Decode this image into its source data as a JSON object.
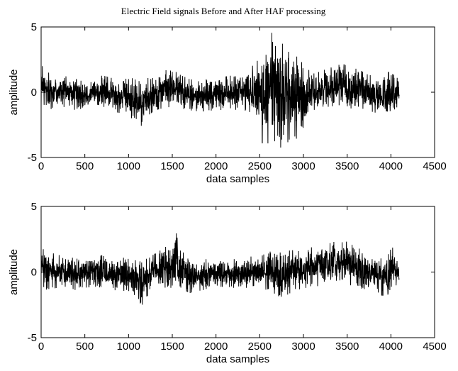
{
  "chart_data": [
    {
      "type": "line",
      "title": "Electric Field signals Before and After HAF processing",
      "xlabel": "data samples",
      "ylabel": "amplitude",
      "xlim": [
        0,
        4500
      ],
      "ylim": [
        -5,
        5
      ],
      "xticks": [
        "0",
        "500",
        "1000",
        "1500",
        "2000",
        "2500",
        "3000",
        "3500",
        "4000",
        "4500"
      ],
      "yticks": [
        "-5",
        "0",
        "5"
      ],
      "grid": false,
      "series": [
        {
          "color": "#000000",
          "x": [
            0,
            100,
            200,
            300,
            400,
            500,
            600,
            700,
            800,
            900,
            1000,
            1100,
            1150,
            1200,
            1300,
            1400,
            1500,
            1550,
            1600,
            1700,
            1800,
            1900,
            2000,
            2100,
            2200,
            2300,
            2400,
            2500,
            2550,
            2600,
            2650,
            2700,
            2750,
            2800,
            2900,
            3000,
            3050,
            3100,
            3200,
            3300,
            3400,
            3450,
            3500,
            3600,
            3700,
            3800,
            3900,
            3950,
            4000,
            4050,
            4096
          ],
          "envelope_min": [
            -1.5,
            -1.3,
            -1.2,
            -1.1,
            -1.4,
            -1.2,
            -1.1,
            -1.2,
            -1.4,
            -1.6,
            -2.0,
            -2.3,
            -2.6,
            -1.9,
            -1.4,
            -1.2,
            -1.2,
            -1.0,
            -1.3,
            -1.6,
            -1.4,
            -1.5,
            -1.3,
            -1.4,
            -1.4,
            -1.6,
            -1.5,
            -2.6,
            -4.8,
            -3.8,
            -4.2,
            -4.0,
            -4.3,
            -3.9,
            -3.6,
            -3.4,
            -2.0,
            -1.4,
            -1.2,
            -1.1,
            -1.0,
            -1.0,
            -1.2,
            -1.3,
            -1.5,
            -1.5,
            -1.8,
            -2.5,
            -1.9,
            -1.4,
            -0.8
          ],
          "envelope_max": [
            2.1,
            1.4,
            1.3,
            1.2,
            1.0,
            1.2,
            1.0,
            1.3,
            1.1,
            1.0,
            1.2,
            0.9,
            0.8,
            1.0,
            1.4,
            1.6,
            1.9,
            1.5,
            1.3,
            1.0,
            0.9,
            1.0,
            1.1,
            1.2,
            1.3,
            1.6,
            1.9,
            2.6,
            3.2,
            4.0,
            5.0,
            4.3,
            3.8,
            3.4,
            2.8,
            2.5,
            1.8,
            1.4,
            1.6,
            1.9,
            2.3,
            2.2,
            2.0,
            1.8,
            1.5,
            1.2,
            1.0,
            1.3,
            1.9,
            1.8,
            0.5
          ]
        }
      ]
    },
    {
      "type": "line",
      "xlabel": "data samples",
      "ylabel": "amplitude",
      "xlim": [
        0,
        4500
      ],
      "ylim": [
        -5,
        5
      ],
      "xticks": [
        "0",
        "500",
        "1000",
        "1500",
        "2000",
        "2500",
        "3000",
        "3500",
        "4000",
        "4500"
      ],
      "yticks": [
        "-5",
        "0",
        "5"
      ],
      "grid": false,
      "series": [
        {
          "color": "#000000",
          "x": [
            0,
            100,
            200,
            300,
            400,
            500,
            600,
            700,
            800,
            900,
            1000,
            1100,
            1150,
            1200,
            1300,
            1400,
            1500,
            1550,
            1600,
            1700,
            1800,
            1900,
            2000,
            2100,
            2200,
            2300,
            2400,
            2500,
            2600,
            2700,
            2730,
            2800,
            2900,
            3000,
            3100,
            3200,
            3300,
            3400,
            3450,
            3500,
            3600,
            3700,
            3800,
            3900,
            3950,
            4000,
            4050,
            4096
          ],
          "envelope_min": [
            -1.4,
            -1.3,
            -1.2,
            -1.1,
            -1.4,
            -1.2,
            -1.1,
            -1.2,
            -1.3,
            -1.5,
            -2.0,
            -2.3,
            -2.6,
            -1.9,
            -1.4,
            -1.2,
            -1.2,
            -1.1,
            -1.3,
            -1.6,
            -1.4,
            -1.5,
            -1.2,
            -1.1,
            -1.2,
            -1.3,
            -1.1,
            -1.0,
            -1.6,
            -2.0,
            -2.8,
            -1.8,
            -1.4,
            -1.3,
            -1.2,
            -1.0,
            -0.9,
            -0.6,
            -0.7,
            -0.9,
            -1.2,
            -1.3,
            -1.5,
            -1.8,
            -2.5,
            -1.9,
            -1.4,
            -0.8
          ],
          "envelope_max": [
            2.0,
            1.5,
            1.3,
            1.2,
            1.0,
            1.2,
            1.0,
            1.3,
            1.1,
            1.0,
            1.2,
            0.9,
            0.8,
            1.0,
            1.4,
            1.8,
            2.3,
            3.0,
            1.7,
            1.2,
            0.9,
            1.0,
            1.0,
            1.0,
            1.0,
            1.1,
            1.4,
            1.2,
            1.5,
            2.0,
            1.8,
            1.6,
            1.7,
            1.7,
            1.9,
            2.0,
            2.2,
            2.4,
            2.6,
            2.3,
            1.9,
            1.6,
            1.3,
            1.0,
            1.3,
            1.9,
            1.8,
            0.5
          ]
        }
      ]
    }
  ]
}
